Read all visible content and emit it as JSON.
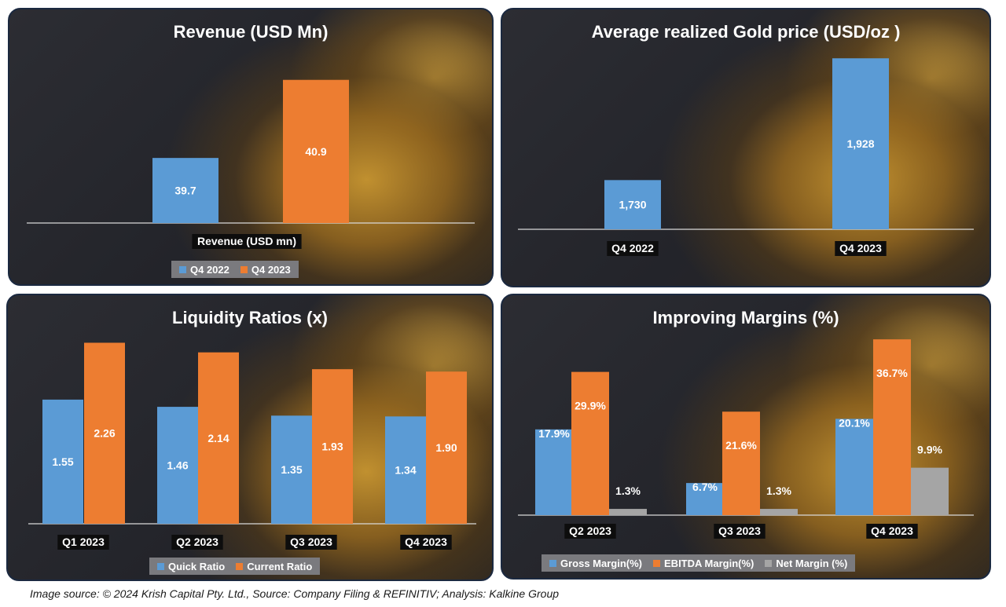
{
  "colors": {
    "blue": "#5b9bd5",
    "orange": "#ed7d31",
    "gray": "#a5a5a5"
  },
  "caption": "Image source: © 2024 Krish Capital Pty. Ltd., Source: Company Filing & REFINITIV; Analysis: Kalkine Group",
  "chart_data": [
    {
      "id": "revenue",
      "type": "bar",
      "title": "Revenue (USD Mn)",
      "categories": [
        "Revenue (USD mn)"
      ],
      "series": [
        {
          "name": "Q4 2022",
          "values": [
            39.7
          ],
          "labels": [
            "39.7"
          ]
        },
        {
          "name": "Q4 2023",
          "values": [
            40.9
          ],
          "labels": [
            "40.9"
          ]
        }
      ],
      "ylim": [
        38.7,
        41.5
      ],
      "legend": "bottom"
    },
    {
      "id": "gold",
      "type": "bar",
      "title": "Average realized Gold price (USD/oz )",
      "categories": [
        "Q4 2022",
        "Q4 2023"
      ],
      "series": [
        {
          "name": "Gold price",
          "values": [
            1730,
            1928
          ],
          "labels": [
            "1,730",
            "1,928"
          ]
        }
      ],
      "ylim": [
        1650,
        1950
      ],
      "legend": "none"
    },
    {
      "id": "liquidity",
      "type": "bar",
      "title": "Liquidity Ratios (x)",
      "categories": [
        "Q1 2023",
        "Q2 2023",
        "Q3 2023",
        "Q4 2023"
      ],
      "series": [
        {
          "name": "Quick Ratio",
          "values": [
            1.55,
            1.46,
            1.35,
            1.34
          ],
          "labels": [
            "1.55",
            "1.46",
            "1.35",
            "1.34"
          ]
        },
        {
          "name": "Current Ratio",
          "values": [
            2.26,
            2.14,
            1.93,
            1.9
          ],
          "labels": [
            "2.26",
            "2.14",
            "1.93",
            "1.90"
          ]
        }
      ],
      "ylim": [
        0,
        2.5
      ],
      "legend": "bottom"
    },
    {
      "id": "margins",
      "type": "bar",
      "title": "Improving Margins (%)",
      "categories": [
        "Q2 2023",
        "Q3 2023",
        "Q4 2023"
      ],
      "series": [
        {
          "name": "Gross Margin(%)",
          "values": [
            17.9,
            6.7,
            20.1
          ],
          "labels": [
            "17.9%",
            "6.7%",
            "20.1%"
          ]
        },
        {
          "name": "EBITDA Margin(%)",
          "values": [
            29.9,
            21.6,
            36.7
          ],
          "labels": [
            "29.9%",
            "21.6%",
            "36.7%"
          ]
        },
        {
          "name": "Net Margin (%)",
          "values": [
            1.3,
            1.3,
            9.9
          ],
          "labels": [
            "1.3%",
            "1.3%",
            "9.9%"
          ]
        }
      ],
      "ylim": [
        0,
        40
      ],
      "legend": "bottom"
    }
  ]
}
